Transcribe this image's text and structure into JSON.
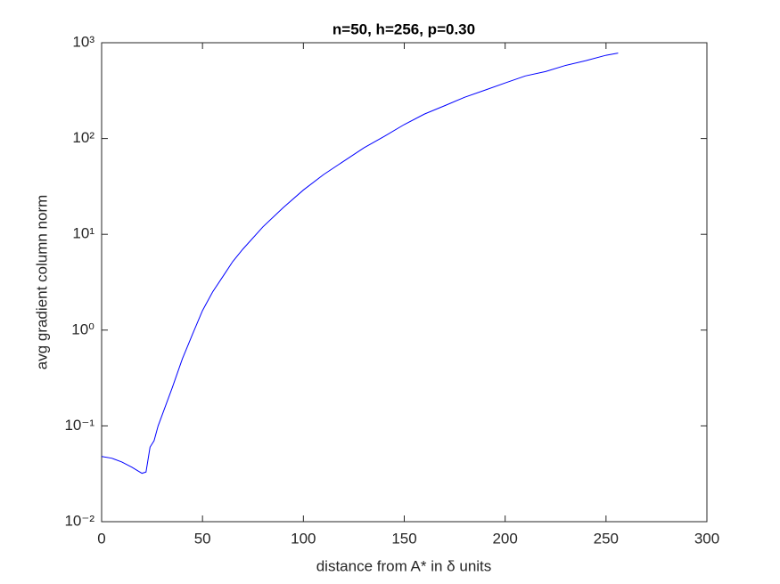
{
  "chart_data": {
    "type": "line",
    "title": "n=50, h=256, p=0.30",
    "xlabel": "distance from A* in δ units",
    "ylabel": "avg gradient column norm",
    "x": [
      0,
      5,
      10,
      15,
      20,
      22,
      24,
      26,
      28,
      30,
      35,
      40,
      45,
      50,
      55,
      60,
      65,
      70,
      80,
      90,
      100,
      110,
      120,
      130,
      140,
      150,
      160,
      170,
      180,
      190,
      200,
      210,
      220,
      230,
      240,
      250,
      256
    ],
    "series": [
      {
        "color": "#0000ff",
        "values": [
          0.048,
          0.046,
          0.042,
          0.037,
          0.032,
          0.033,
          0.06,
          0.07,
          0.1,
          0.13,
          0.25,
          0.5,
          0.9,
          1.6,
          2.5,
          3.6,
          5.2,
          7,
          12,
          19,
          29,
          42,
          58,
          80,
          105,
          140,
          180,
          220,
          270,
          320,
          380,
          450,
          500,
          580,
          650,
          740,
          780
        ]
      }
    ],
    "xlim": [
      0,
      300
    ],
    "xticks": [
      0,
      50,
      100,
      150,
      200,
      250,
      300
    ],
    "ylim": [
      0.01,
      1000
    ],
    "log_y": true,
    "yticks": [
      {
        "value": 0.01,
        "label": "10⁻²"
      },
      {
        "value": 0.1,
        "label": "10⁻¹"
      },
      {
        "value": 1,
        "label": "10⁰"
      },
      {
        "value": 10,
        "label": "10¹"
      },
      {
        "value": 100,
        "label": "10²"
      },
      {
        "value": 1000,
        "label": "10³"
      }
    ]
  }
}
